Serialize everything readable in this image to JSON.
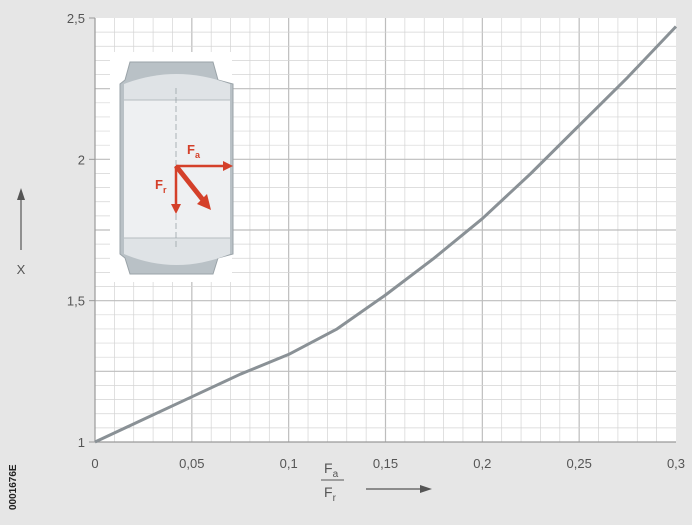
{
  "figure_code": "0001676E",
  "colors": {
    "background": "#e6e6e6",
    "plot_bg": "#ffffff",
    "grid_minor": "#d4d4d4",
    "grid_major": "#bdbdbd",
    "curve": "#8a9196",
    "text": "#555555",
    "arrow": "#d4402a"
  },
  "inset": {
    "fa_label": "F",
    "fa_sub": "a",
    "fr_label": "F",
    "fr_sub": "r"
  },
  "chart_data": {
    "type": "line",
    "xlim": [
      0,
      0.3
    ],
    "ylim": [
      1,
      2.5
    ],
    "x_ticks": [
      0,
      0.05,
      0.1,
      0.15,
      0.2,
      0.25,
      0.3
    ],
    "x_tick_labels": [
      "0",
      "0,05",
      "0,1",
      "0,15",
      "0,2",
      "0,25",
      "0,3"
    ],
    "y_ticks": [
      1,
      1.5,
      2,
      2.5
    ],
    "y_tick_labels": [
      "1",
      "1,5",
      "2",
      "2,5"
    ],
    "xlabel_num": "F",
    "xlabel_num_sub": "a",
    "xlabel_den": "F",
    "xlabel_den_sub": "r",
    "ylabel": "X",
    "grid": true,
    "series": [
      {
        "x": [
          0,
          0.025,
          0.05,
          0.075,
          0.1,
          0.125,
          0.15,
          0.175,
          0.2,
          0.225,
          0.25,
          0.275,
          0.3
        ],
        "y": [
          1.0,
          1.08,
          1.16,
          1.24,
          1.31,
          1.4,
          1.52,
          1.65,
          1.79,
          1.95,
          2.12,
          2.29,
          2.47
        ]
      }
    ]
  }
}
